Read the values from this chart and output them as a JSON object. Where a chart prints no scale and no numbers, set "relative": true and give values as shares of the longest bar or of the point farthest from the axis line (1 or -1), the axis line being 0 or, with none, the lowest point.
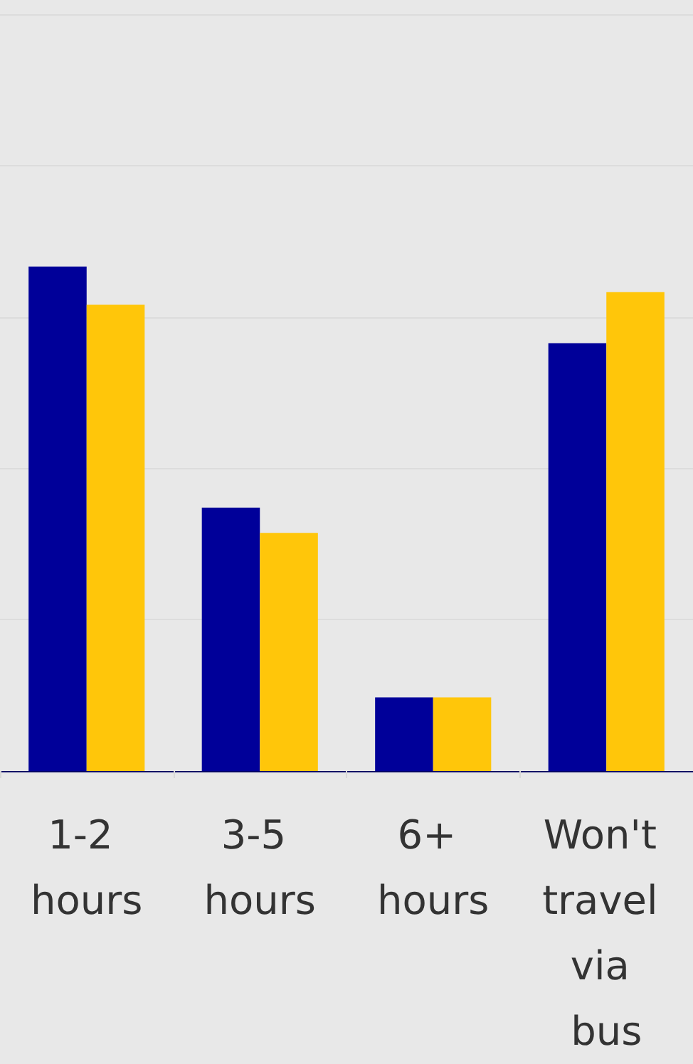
{
  "chart_data": {
    "type": "bar",
    "relative": true,
    "grid": "y",
    "categories": [
      "1-2 hours",
      "3-5 hours",
      "6+ hours",
      "Won't travel via bus"
    ],
    "series": [
      {
        "color": "#000099",
        "values": [
          1,
          0.522,
          0.146,
          0.848
        ]
      },
      {
        "color": "#ffc60a",
        "values": [
          0.924,
          0.472,
          0.146,
          0.949
        ]
      }
    ]
  }
}
